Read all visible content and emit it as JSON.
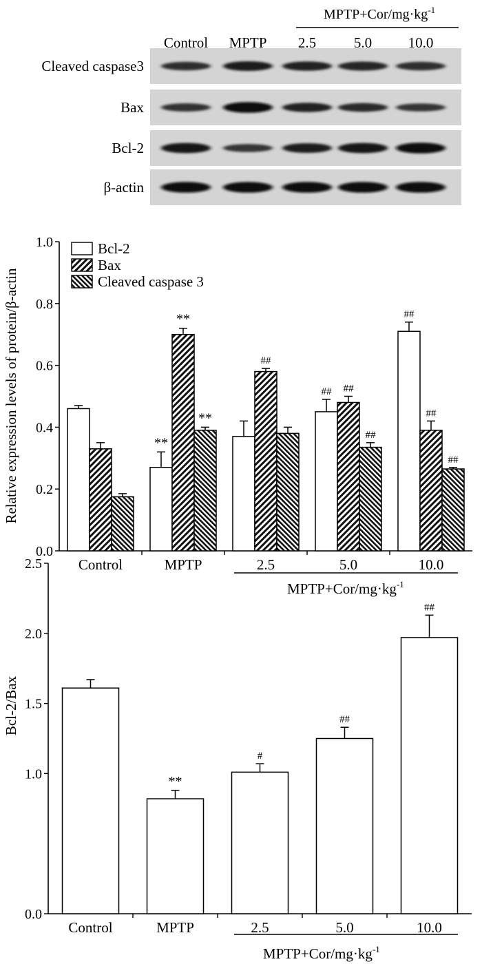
{
  "blot": {
    "group_label": "MPTP+Cor/mg·kg",
    "group_label_sup": "-1",
    "lanes": [
      "Control",
      "MPTP",
      "2.5",
      "5.0",
      "10.0"
    ],
    "rows": [
      {
        "name": "Cleaved caspase3",
        "intensity": [
          0.55,
          0.75,
          0.7,
          0.65,
          0.55
        ]
      },
      {
        "name": "Bax",
        "intensity": [
          0.5,
          0.95,
          0.7,
          0.6,
          0.45
        ]
      },
      {
        "name": "Bcl-2",
        "intensity": [
          0.85,
          0.45,
          0.75,
          0.85,
          0.95
        ]
      },
      {
        "name": "β-actin",
        "intensity": [
          0.95,
          0.95,
          0.95,
          0.95,
          0.95
        ]
      }
    ]
  },
  "chart_data": [
    {
      "type": "bar",
      "ylabel": "Relative expression levels of protein/β-actin",
      "ylim": [
        0,
        1.0
      ],
      "yticks": [
        "0.0",
        "0.2",
        "0.4",
        "0.6",
        "0.8",
        "1.0"
      ],
      "categories": [
        "Control",
        "MPTP",
        "2.5",
        "5.0",
        "10.0"
      ],
      "xgroup_label": "MPTP+Cor/mg·kg",
      "xgroup_label_sup": "-1",
      "legend_position": "top-left",
      "series": [
        {
          "name": "Bcl-2",
          "pattern": "open",
          "values": [
            0.46,
            0.27,
            0.37,
            0.45,
            0.71
          ],
          "errors": [
            0.01,
            0.05,
            0.05,
            0.04,
            0.03
          ],
          "marks": [
            "",
            "**",
            "",
            "##",
            "##"
          ]
        },
        {
          "name": "Bax",
          "pattern": "hatch",
          "values": [
            0.33,
            0.7,
            0.58,
            0.48,
            0.39
          ],
          "errors": [
            0.02,
            0.02,
            0.01,
            0.02,
            0.03
          ],
          "marks": [
            "",
            "**",
            "##",
            "##",
            "##"
          ]
        },
        {
          "name": "Cleaved caspase 3",
          "pattern": "dense-hatch",
          "values": [
            0.175,
            0.39,
            0.38,
            0.335,
            0.265
          ],
          "errors": [
            0.01,
            0.01,
            0.02,
            0.015,
            0.005
          ],
          "marks": [
            "",
            "**",
            "",
            "##",
            "##"
          ]
        }
      ]
    },
    {
      "type": "bar",
      "ylabel": "Bcl-2/Bax",
      "ylim": [
        0,
        2.5
      ],
      "yticks": [
        "0.0",
        "1.0",
        "1.5",
        "2.0",
        "2.5"
      ],
      "ytick_values": [
        0,
        1.0,
        1.5,
        2.0,
        2.5
      ],
      "categories": [
        "Control",
        "MPTP",
        "2.5",
        "5.0",
        "10.0"
      ],
      "xgroup_label": "MPTP+Cor/mg·kg",
      "xgroup_label_sup": "-1",
      "series": [
        {
          "name": "Bcl-2/Bax",
          "pattern": "open",
          "values": [
            1.61,
            0.82,
            1.01,
            1.25,
            1.97
          ],
          "errors": [
            0.06,
            0.06,
            0.06,
            0.08,
            0.16
          ],
          "marks": [
            "",
            "**",
            "#",
            "##",
            "##"
          ]
        }
      ]
    }
  ]
}
